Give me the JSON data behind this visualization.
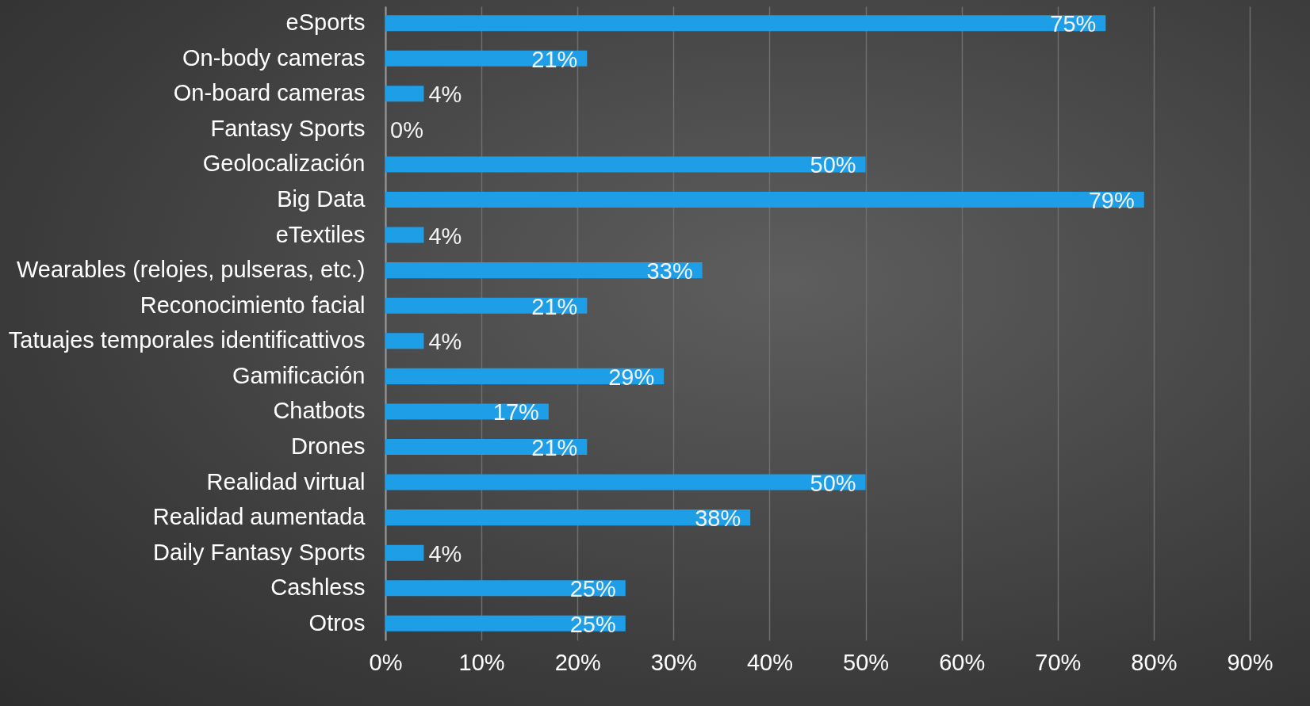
{
  "chart_data": {
    "type": "bar",
    "orientation": "horizontal",
    "categories": [
      "eSports",
      "On-body cameras",
      "On-board cameras",
      "Fantasy Sports",
      "Geolocalización",
      "Big Data",
      "eTextiles",
      "Wearables (relojes, pulseras, etc.)",
      "Reconocimiento facial",
      "Tatuajes temporales identificattivos",
      "Gamificación",
      "Chatbots",
      "Drones",
      "Realidad virtual",
      "Realidad aumentada",
      "Daily Fantasy Sports",
      "Cashless",
      "Otros"
    ],
    "values": [
      75,
      21,
      4,
      0,
      50,
      79,
      4,
      33,
      21,
      4,
      29,
      17,
      21,
      50,
      38,
      4,
      25,
      25
    ],
    "value_labels": [
      "75%",
      "21%",
      "4%",
      "0%",
      "50%",
      "79%",
      "4%",
      "33%",
      "21%",
      "4%",
      "29%",
      "17%",
      "21%",
      "50%",
      "38%",
      "4%",
      "25%",
      "25%"
    ],
    "color": "#1e9ee6",
    "xlim": [
      0,
      90
    ],
    "xticks": [
      {
        "value": 0,
        "label": "0%"
      },
      {
        "value": 10,
        "label": "10%"
      },
      {
        "value": 20,
        "label": "20%"
      },
      {
        "value": 30,
        "label": "30%"
      },
      {
        "value": 40,
        "label": "40%"
      },
      {
        "value": 50,
        "label": "50%"
      },
      {
        "value": 60,
        "label": "60%"
      },
      {
        "value": 70,
        "label": "70%"
      },
      {
        "value": 80,
        "label": "80%"
      },
      {
        "value": 90,
        "label": "90%"
      }
    ],
    "grid": "x"
  }
}
